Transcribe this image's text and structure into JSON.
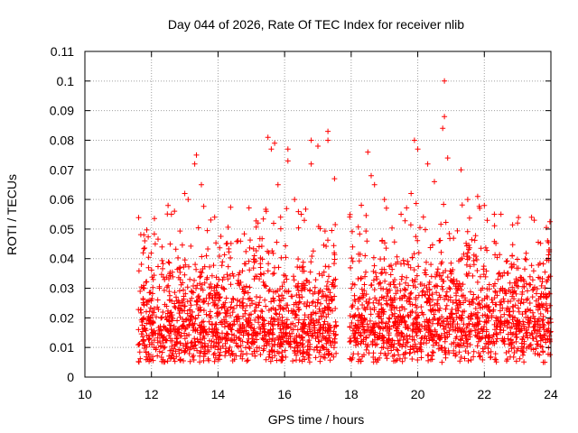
{
  "colors": {
    "series": "#ff0000",
    "grid": "#a0a0a0",
    "axis": "#000000",
    "background": "#ffffff"
  },
  "chart_data": {
    "type": "scatter",
    "title": "Day 044 of 2026, Rate Of TEC Index for receiver nlib",
    "xlabel": "GPS time / hours",
    "ylabel": "ROTI / TECUs",
    "xlim": [
      10,
      24
    ],
    "ylim": [
      0,
      0.11
    ],
    "xticks": [
      10,
      12,
      14,
      16,
      18,
      20,
      22,
      24
    ],
    "xtick_labels": [
      "10",
      "12",
      "14",
      "16",
      "18",
      "20",
      "22",
      "24"
    ],
    "yticks": [
      0,
      0.01,
      0.02,
      0.03,
      0.04,
      0.05,
      0.06,
      0.07,
      0.08,
      0.09,
      0.1,
      0.11
    ],
    "ytick_labels": [
      "0",
      "0.01",
      "0.02",
      "0.03",
      "0.04",
      "0.05",
      "0.06",
      "0.07",
      "0.08",
      "0.09",
      "0.1",
      "0.11"
    ],
    "grid": true,
    "marker": "plus",
    "series": [
      {
        "name": "ROTI",
        "segments": [
          {
            "x_range": [
              11.6,
              17.55
            ],
            "median": 0.018,
            "spread": 0.012,
            "min": 0.005
          },
          {
            "x_range": [
              17.95,
              24.0
            ],
            "median": 0.019,
            "spread": 0.012,
            "min": 0.005
          }
        ],
        "outliers": [
          [
            11.75,
            0.042
          ],
          [
            11.8,
            0.046
          ],
          [
            12.5,
            0.058
          ],
          [
            12.6,
            0.055
          ],
          [
            13.0,
            0.062
          ],
          [
            13.1,
            0.06
          ],
          [
            13.3,
            0.072
          ],
          [
            13.35,
            0.075
          ],
          [
            13.5,
            0.065
          ],
          [
            13.9,
            0.054
          ],
          [
            14.6,
            0.046
          ],
          [
            15.2,
            0.052
          ],
          [
            15.5,
            0.081
          ],
          [
            15.6,
            0.077
          ],
          [
            15.7,
            0.079
          ],
          [
            15.8,
            0.065
          ],
          [
            16.1,
            0.077
          ],
          [
            16.1,
            0.073
          ],
          [
            16.3,
            0.06
          ],
          [
            16.5,
            0.055
          ],
          [
            16.8,
            0.08
          ],
          [
            16.8,
            0.072
          ],
          [
            17.0,
            0.078
          ],
          [
            17.3,
            0.083
          ],
          [
            17.3,
            0.08
          ],
          [
            17.5,
            0.067
          ],
          [
            18.5,
            0.076
          ],
          [
            18.6,
            0.068
          ],
          [
            18.7,
            0.065
          ],
          [
            19.0,
            0.06
          ],
          [
            19.5,
            0.055
          ],
          [
            19.8,
            0.062
          ],
          [
            19.9,
            0.08
          ],
          [
            20.0,
            0.077
          ],
          [
            20.3,
            0.072
          ],
          [
            20.5,
            0.066
          ],
          [
            20.8,
            0.1
          ],
          [
            20.8,
            0.088
          ],
          [
            20.75,
            0.084
          ],
          [
            20.9,
            0.074
          ],
          [
            21.3,
            0.07
          ],
          [
            21.5,
            0.06
          ],
          [
            21.8,
            0.061
          ],
          [
            22.0,
            0.058
          ],
          [
            22.5,
            0.055
          ],
          [
            23.0,
            0.052
          ],
          [
            23.5,
            0.053
          ],
          [
            23.9,
            0.046
          ],
          [
            23.95,
            0.043
          ]
        ]
      }
    ]
  }
}
